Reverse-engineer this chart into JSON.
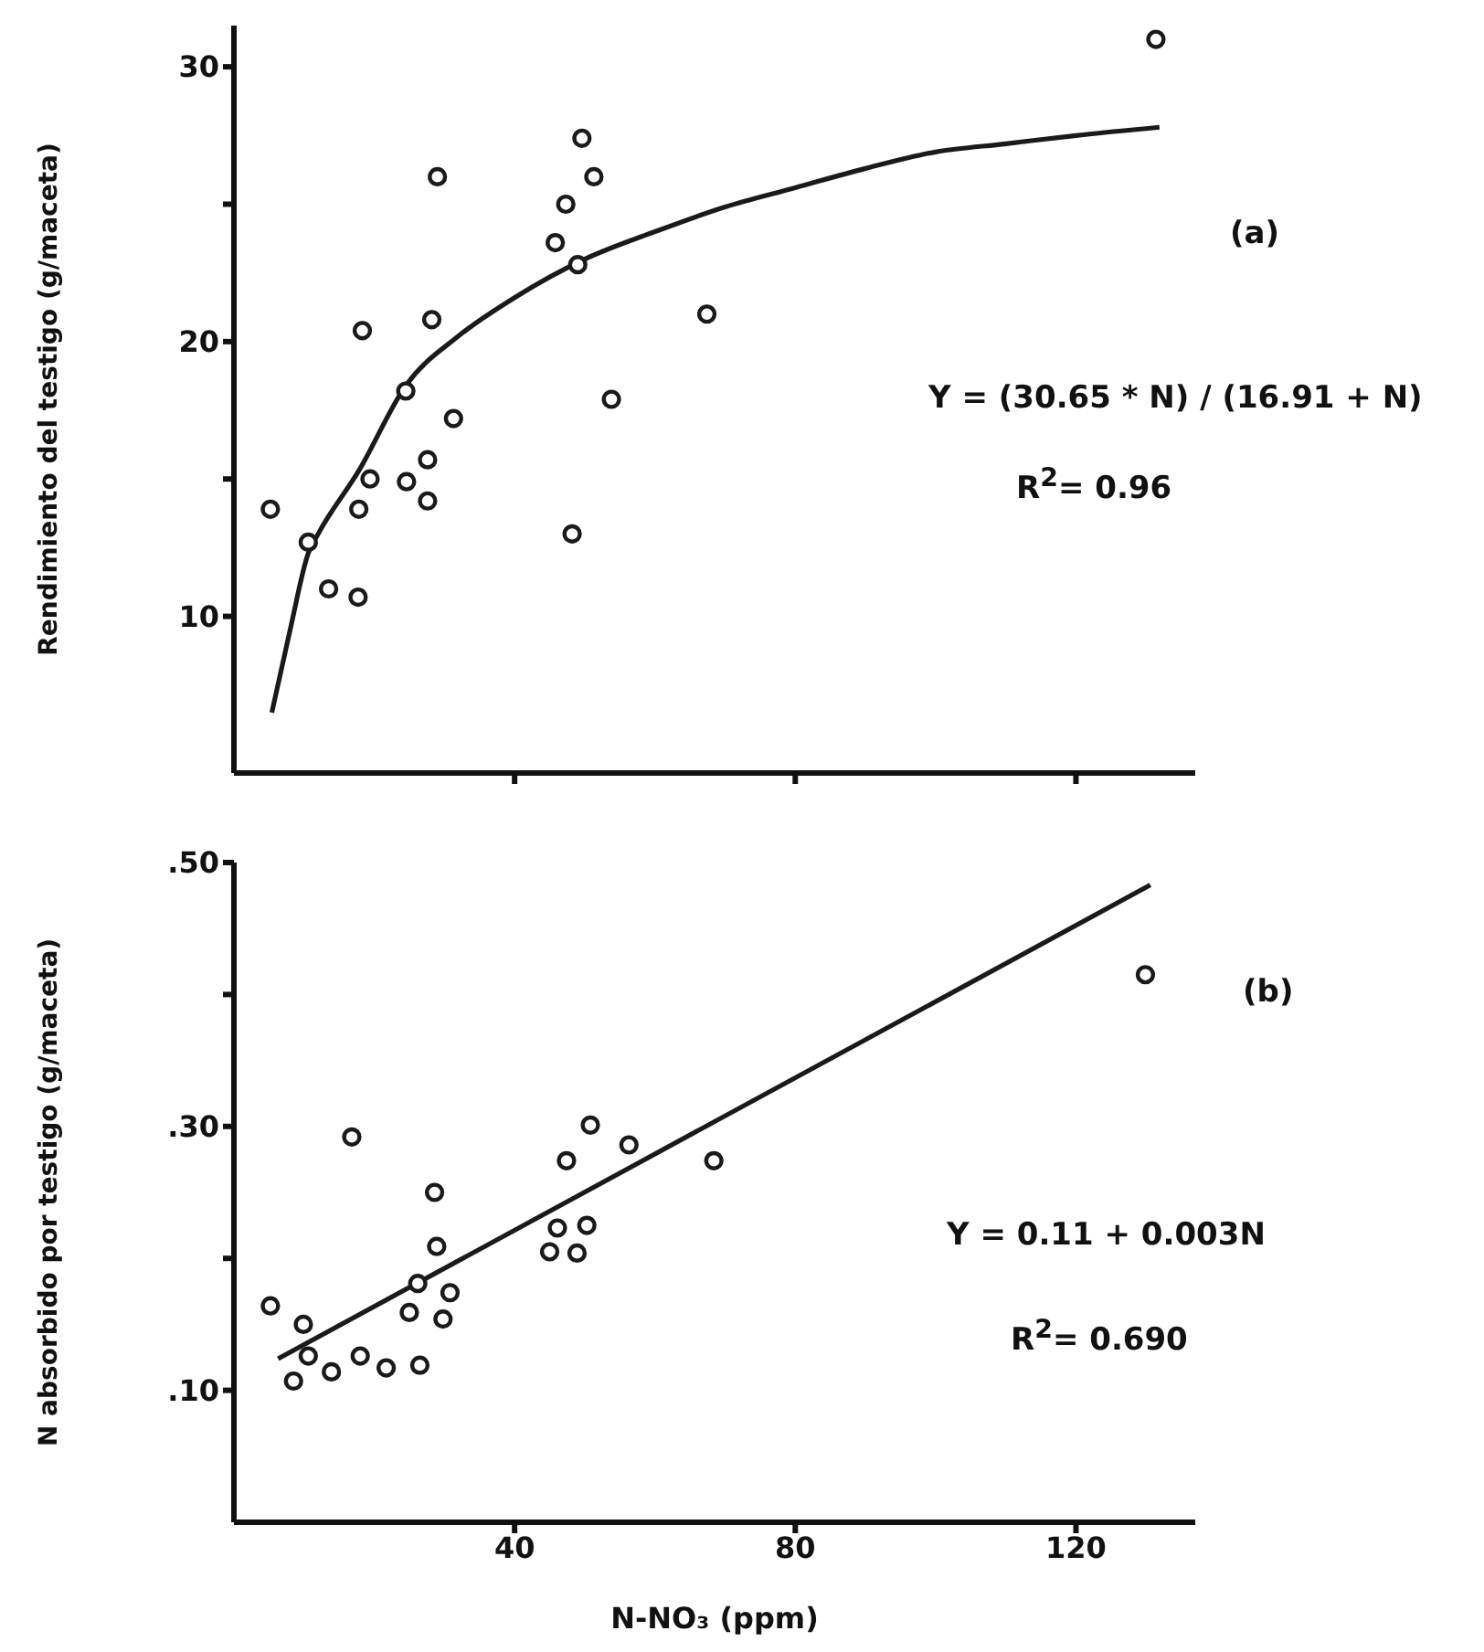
{
  "chart_data": [
    {
      "type": "scatter",
      "ylabel": "Rendimiento del testigo (g/maceta)",
      "xlim": [
        0,
        137
      ],
      "ylim": [
        4.3,
        31.5
      ],
      "xticks": [
        {
          "value": 40,
          "label": null
        },
        {
          "value": 80,
          "label": null
        },
        {
          "value": 120,
          "label": null
        }
      ],
      "yticks": [
        10,
        {
          "value": 15,
          "label": null
        },
        20,
        {
          "value": 25,
          "label": null
        },
        30
      ],
      "tick_labels": "y",
      "annotations": [
        "(a)",
        "Y = (30.65 * N) / (16.91 + N)",
        "R$^{2}$= 0.96"
      ],
      "series": [
        {
          "marker": "circle",
          "color": "#1a1a1a",
          "x": [
            5.2,
            10.6,
            13.5,
            17.7,
            17.8,
            18.3,
            19.4,
            24.5,
            24.6,
            27.6,
            27.6,
            28.2,
            29.0,
            31.3,
            45.8,
            47.3,
            48.2,
            49.0,
            49.6,
            51.3,
            53.8,
            67.4,
            131.4
          ],
          "values": [
            13.9,
            12.7,
            11.0,
            10.7,
            13.9,
            20.4,
            15.0,
            18.2,
            14.9,
            15.7,
            14.2,
            20.8,
            26.0,
            17.2,
            23.6,
            25.0,
            13.0,
            22.8,
            27.4,
            26.0,
            17.9,
            21.0,
            31.0
          ]
        },
        {
          "type": "line",
          "marker": "none",
          "color": "#1a1a1a",
          "line_style": "solid",
          "x": [
            5.4,
            8,
            10.6,
            12,
            17.8,
            24.5,
            32,
            40,
            50,
            60,
            70,
            80,
            90,
            100,
            110,
            120,
            131.9
          ],
          "values": [
            6.5,
            9.5,
            12.3,
            13.0,
            15.3,
            18.4,
            20.2,
            21.6,
            23.0,
            24.0,
            24.9,
            25.6,
            26.3,
            26.9,
            27.2,
            27.5,
            27.8
          ]
        }
      ]
    },
    {
      "type": "scatter",
      "xlabel": "N-NO₃ (ppm)",
      "ylabel": "N absorbido por testigo (g/maceta)",
      "xlim": [
        0,
        137
      ],
      "ylim": [
        0,
        0.5
      ],
      "xticks": [
        40,
        80,
        120
      ],
      "yticks": [
        {
          "value": 0.1,
          "label": ".10"
        },
        {
          "value": 0.2,
          "label": null
        },
        {
          "value": 0.3,
          "label": ".30"
        },
        {
          "value": 0.4,
          "label": null
        },
        {
          "value": 0.5,
          "label": ".50"
        }
      ],
      "annotations": [
        "(b)",
        "Y = 0.11 + 0.003N",
        "R$^{2}$= 0.690"
      ],
      "series": [
        {
          "marker": "circle",
          "color": "#1a1a1a",
          "x": [
            5.2,
            8.5,
            9.9,
            10.6,
            13.9,
            16.8,
            18.0,
            21.7,
            25.0,
            26.2,
            26.5,
            28.6,
            28.9,
            29.8,
            30.8,
            45.0,
            46.1,
            47.4,
            48.9,
            50.3,
            50.8,
            56.3,
            68.4,
            129.9
          ],
          "values": [
            0.164,
            0.107,
            0.15,
            0.126,
            0.114,
            0.292,
            0.126,
            0.117,
            0.159,
            0.181,
            0.119,
            0.25,
            0.209,
            0.154,
            0.174,
            0.205,
            0.223,
            0.274,
            0.204,
            0.225,
            0.301,
            0.286,
            0.274,
            0.415
          ]
        },
        {
          "type": "line",
          "marker": "none",
          "color": "#1a1a1a",
          "line_style": "solid",
          "x": [
            6.3,
            130.6
          ],
          "values": [
            0.124,
            0.483
          ]
        }
      ]
    }
  ]
}
